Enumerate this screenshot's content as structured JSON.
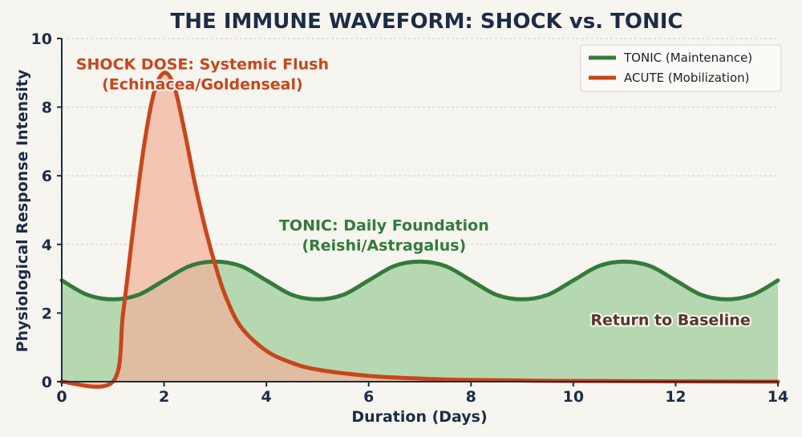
{
  "chart_data": {
    "type": "area",
    "title": "THE IMMUNE WAVEFORM: SHOCK vs. TONIC",
    "xlabel": "Duration (Days)",
    "ylabel": "Physiological Response Intensity",
    "xlim": [
      0,
      14
    ],
    "ylim": [
      0,
      10
    ],
    "x_ticks": [
      0,
      2,
      4,
      6,
      8,
      10,
      12,
      14
    ],
    "y_ticks": [
      0,
      2,
      4,
      6,
      8,
      10
    ],
    "grid": true,
    "legend_position": "top-right",
    "series": [
      {
        "name": "TONIC (Maintenance)",
        "color": "#347a3c",
        "fill": "#a9d2a6",
        "x": [
          0,
          0.5,
          1,
          1.5,
          2,
          2.5,
          3,
          3.5,
          4,
          4.5,
          5,
          5.5,
          6,
          6.5,
          7,
          7.5,
          8,
          8.5,
          9,
          9.5,
          10,
          10.5,
          11,
          11.5,
          12,
          12.5,
          13,
          13.5,
          14
        ],
        "values": [
          2.95,
          2.53,
          2.4,
          2.53,
          2.95,
          3.37,
          3.5,
          3.37,
          2.95,
          2.53,
          2.4,
          2.53,
          2.95,
          3.37,
          3.5,
          3.37,
          2.95,
          2.53,
          2.4,
          2.53,
          2.95,
          3.37,
          3.5,
          3.37,
          2.95,
          2.53,
          2.4,
          2.53,
          2.95
        ]
      },
      {
        "name": "ACUTE (Mobilization)",
        "color": "#c8461b",
        "fill": "#f2b09a",
        "x": [
          0,
          1.0,
          1.2,
          1.4,
          1.6,
          1.8,
          2.0,
          2.2,
          2.4,
          2.6,
          2.8,
          3.0,
          3.2,
          3.5,
          4.0,
          4.5,
          5.0,
          6.0,
          7.0,
          8.0,
          10.0,
          12.0,
          14.0
        ],
        "values": [
          0,
          0,
          2.0,
          4.5,
          6.8,
          8.4,
          9.0,
          8.6,
          7.3,
          5.8,
          4.5,
          3.4,
          2.5,
          1.6,
          0.9,
          0.55,
          0.35,
          0.17,
          0.09,
          0.05,
          0.02,
          0.01,
          0.0
        ]
      }
    ],
    "annotations": [
      {
        "lines": [
          "SHOCK DOSE: Systemic Flush",
          "(Echinacea/Goldenseal)"
        ],
        "x": 2.75,
        "y": 9.1,
        "color": "#c8461b"
      },
      {
        "lines": [
          "TONIC: Daily Foundation",
          "(Reishi/Astragalus)"
        ],
        "x": 6.3,
        "y": 4.4,
        "color": "#347a3c"
      },
      {
        "lines": [
          "Return to Baseline"
        ],
        "x": 11.9,
        "y": 1.65,
        "color": "#5a3530"
      }
    ]
  }
}
